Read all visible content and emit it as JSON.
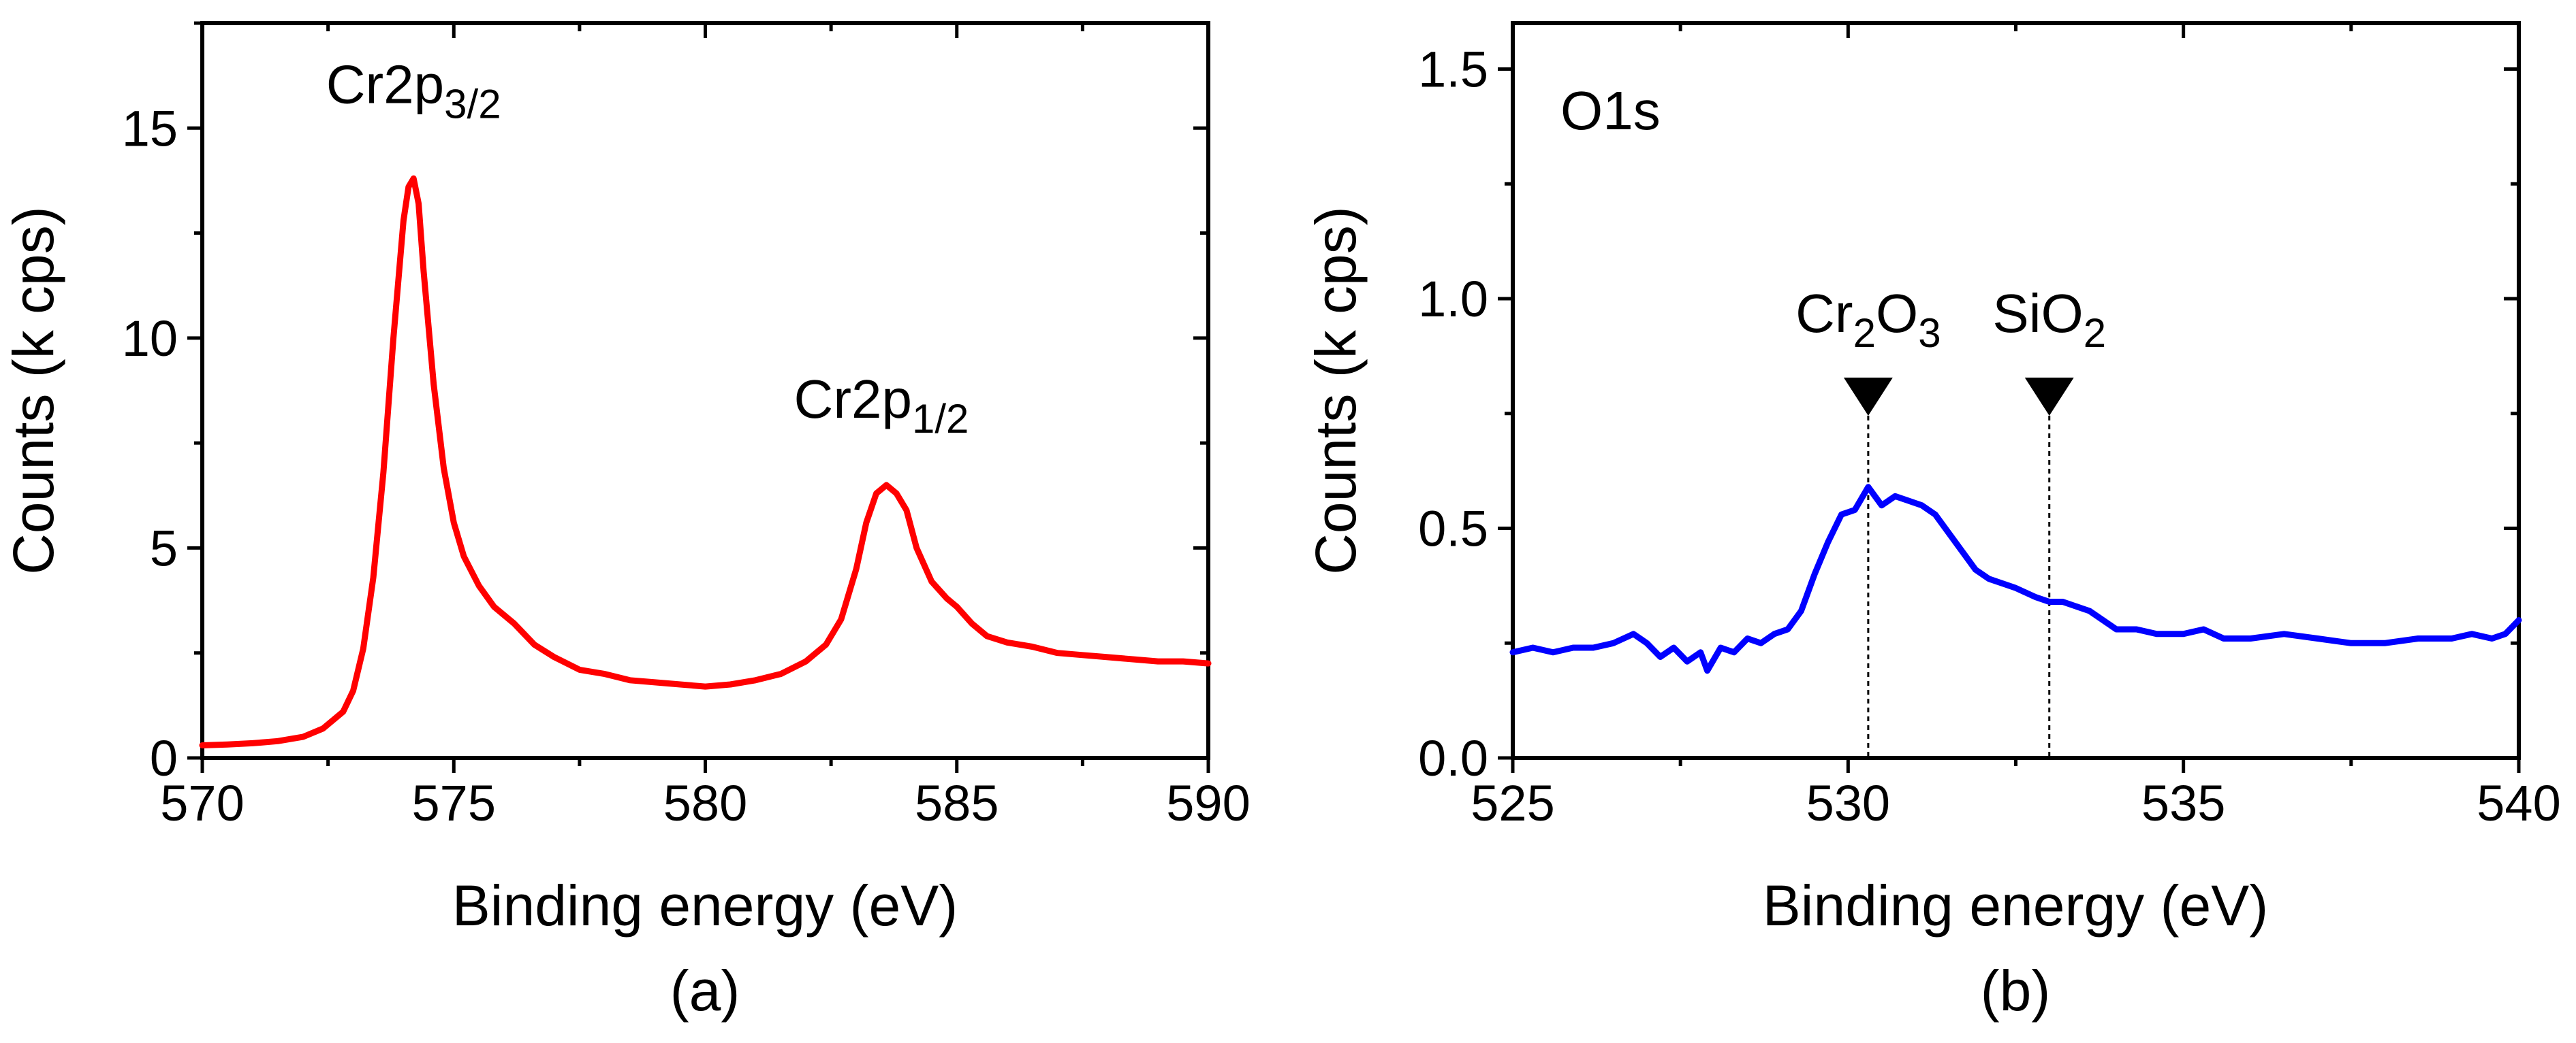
{
  "chart_data": [
    {
      "id": "a",
      "type": "line",
      "panel_label": "(a)",
      "xlabel": "Binding energy (eV)",
      "ylabel": "Counts (k cps)",
      "xlim": [
        570,
        590
      ],
      "ylim": [
        0,
        17.5
      ],
      "xticks": [
        570,
        575,
        580,
        585,
        590
      ],
      "xtick_labels": [
        "570",
        "575",
        "580",
        "585",
        "590"
      ],
      "yticks": [
        0,
        5,
        10,
        15
      ],
      "ytick_labels": [
        "0",
        "5",
        "10",
        "15"
      ],
      "annotations": [
        {
          "base": "Cr2p",
          "sub": "3/2",
          "x": 574.2,
          "y": 15.6
        },
        {
          "base": "Cr2p",
          "sub": "1/2",
          "x": 583.5,
          "y": 8.1
        }
      ],
      "series": [
        {
          "name": "Cr2p",
          "color": "#ff0000",
          "x": [
            570.0,
            570.5,
            571.0,
            571.5,
            572.0,
            572.4,
            572.8,
            573.0,
            573.2,
            573.4,
            573.6,
            573.8,
            574.0,
            574.1,
            574.2,
            574.3,
            574.4,
            574.6,
            574.8,
            575.0,
            575.2,
            575.5,
            575.8,
            576.2,
            576.6,
            577.0,
            577.5,
            578.0,
            578.5,
            579.0,
            579.5,
            580.0,
            580.5,
            581.0,
            581.5,
            582.0,
            582.4,
            582.7,
            583.0,
            583.2,
            583.4,
            583.6,
            583.8,
            584.0,
            584.2,
            584.5,
            584.8,
            585.0,
            585.3,
            585.6,
            586.0,
            586.5,
            587.0,
            587.5,
            588.0,
            588.5,
            589.0,
            589.5,
            590.0
          ],
          "y": [
            0.3,
            0.32,
            0.35,
            0.4,
            0.5,
            0.7,
            1.1,
            1.6,
            2.6,
            4.3,
            6.8,
            10.0,
            12.8,
            13.6,
            13.8,
            13.2,
            11.6,
            8.9,
            6.9,
            5.6,
            4.8,
            4.1,
            3.6,
            3.2,
            2.7,
            2.4,
            2.1,
            2.0,
            1.85,
            1.8,
            1.75,
            1.7,
            1.75,
            1.85,
            2.0,
            2.3,
            2.7,
            3.3,
            4.5,
            5.6,
            6.3,
            6.5,
            6.3,
            5.9,
            5.0,
            4.2,
            3.8,
            3.6,
            3.2,
            2.9,
            2.75,
            2.65,
            2.5,
            2.45,
            2.4,
            2.35,
            2.3,
            2.3,
            2.25
          ]
        }
      ]
    },
    {
      "id": "b",
      "type": "line",
      "panel_label": "(b)",
      "xlabel": "Binding energy (eV)",
      "ylabel": "Counts (k cps)",
      "xlim": [
        525,
        540
      ],
      "ylim": [
        0,
        1.6
      ],
      "xticks": [
        525,
        530,
        535,
        540
      ],
      "xtick_labels": [
        "525",
        "530",
        "535",
        "540"
      ],
      "yticks": [
        0.0,
        0.5,
        1.0,
        1.5
      ],
      "ytick_labels": [
        "0.0",
        "0.5",
        "1.0",
        "1.5"
      ],
      "title": "O1s",
      "markers": [
        {
          "base": "Cr",
          "sub1": "2",
          "mid": "O",
          "sub2": "3",
          "x": 530.3
        },
        {
          "base": "SiO",
          "sub1": "2",
          "mid": "",
          "sub2": "",
          "x": 533.0
        }
      ],
      "series": [
        {
          "name": "O1s",
          "color": "#0000ff",
          "x": [
            525.0,
            525.3,
            525.6,
            525.9,
            526.2,
            526.5,
            526.8,
            527.0,
            527.2,
            527.4,
            527.6,
            527.8,
            527.9,
            528.1,
            528.3,
            528.5,
            528.7,
            528.9,
            529.1,
            529.3,
            529.5,
            529.7,
            529.9,
            530.1,
            530.3,
            530.5,
            530.7,
            530.9,
            531.1,
            531.3,
            531.5,
            531.7,
            531.9,
            532.1,
            532.3,
            532.5,
            532.8,
            533.0,
            533.2,
            533.4,
            533.6,
            533.8,
            534.0,
            534.3,
            534.6,
            535.0,
            535.3,
            535.6,
            536.0,
            536.5,
            537.0,
            537.5,
            538.0,
            538.5,
            539.0,
            539.3,
            539.6,
            539.8,
            540.0
          ],
          "y": [
            0.23,
            0.24,
            0.23,
            0.24,
            0.24,
            0.25,
            0.27,
            0.25,
            0.22,
            0.24,
            0.21,
            0.23,
            0.19,
            0.24,
            0.23,
            0.26,
            0.25,
            0.27,
            0.28,
            0.32,
            0.4,
            0.47,
            0.53,
            0.54,
            0.59,
            0.55,
            0.57,
            0.56,
            0.55,
            0.53,
            0.49,
            0.45,
            0.41,
            0.39,
            0.38,
            0.37,
            0.35,
            0.34,
            0.34,
            0.33,
            0.32,
            0.3,
            0.28,
            0.28,
            0.27,
            0.27,
            0.28,
            0.26,
            0.26,
            0.27,
            0.26,
            0.25,
            0.25,
            0.26,
            0.26,
            0.27,
            0.26,
            0.27,
            0.3
          ]
        }
      ]
    }
  ]
}
